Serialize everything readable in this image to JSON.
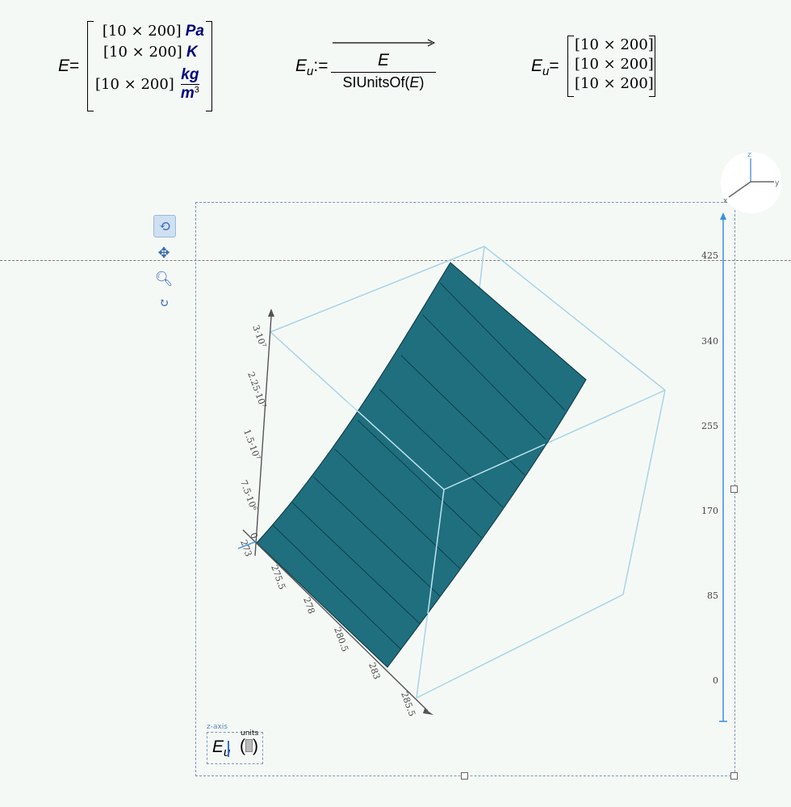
{
  "worksheet": {
    "eq1": {
      "lhs": "E",
      "eq": "=",
      "rows": [
        {
          "value": "[10 × 200]",
          "unit": "Pa"
        },
        {
          "value": "[10 × 200]",
          "unit": "K"
        },
        {
          "value": "[10 × 200]",
          "unit_num": "kg",
          "unit_den": "m",
          "unit_exp": "3"
        }
      ]
    },
    "eq2": {
      "lhs": "E",
      "sub": "u",
      "assign": ":=",
      "numerator": "E",
      "denominator": "SIUnitsOf",
      "arg": "E"
    },
    "eq3": {
      "lhs": "E",
      "sub": "u",
      "eq": "=",
      "rows": [
        "[10 × 200]",
        "[10 × 200]",
        "[10 × 200]"
      ]
    }
  },
  "plot": {
    "toolbar": [
      "rotate-icon",
      "pan-icon",
      "zoom-icon",
      "reset-icon"
    ],
    "orientation": {
      "x": "x",
      "y": "y",
      "z": "z"
    },
    "zaxis_placeholder": {
      "label": "z-axis",
      "expr": "E",
      "sub": "u",
      "units_label": "units"
    },
    "colors": {
      "surface": "#1f6f7e",
      "box": "#a8d4e6",
      "axis_accent": "#3a8fe0"
    },
    "chart_data": {
      "type": "surface3d",
      "z_ticks": [
        "0",
        "85",
        "170",
        "255",
        "340",
        "425"
      ],
      "x_ticks": [
        "273",
        "275.5",
        "278",
        "280.5",
        "283",
        "285.5"
      ],
      "y_ticks": [
        "0",
        "7.5·10⁶",
        "1.5·10⁷",
        "2.25·10⁷",
        "3·10⁷"
      ]
    }
  }
}
